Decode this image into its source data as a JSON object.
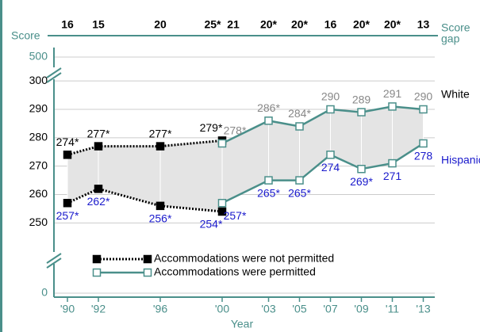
{
  "chart_data": {
    "type": "line",
    "ylabel": "Score",
    "y2label": [
      "Score",
      "gap"
    ],
    "xlabel": "Year",
    "xlim": [
      1988.5,
      2014.5
    ],
    "xticks": [
      {
        "value": 1990,
        "label": "'90"
      },
      {
        "value": 1992,
        "label": "'92"
      },
      {
        "value": 1996,
        "label": "'96"
      },
      {
        "value": 2000,
        "label": "'00"
      },
      {
        "value": 2003,
        "label": "'03"
      },
      {
        "value": 2005,
        "label": "'05"
      },
      {
        "value": 2007,
        "label": "'07"
      },
      {
        "value": 2009,
        "label": "'09"
      },
      {
        "value": 2011,
        "label": "'11"
      },
      {
        "value": 2013,
        "label": "'13"
      }
    ],
    "ylim": [
      242,
      302
    ],
    "yticks": [
      250,
      260,
      270,
      280,
      290,
      300
    ],
    "broken_yticks": [
      0,
      500
    ],
    "grid": true,
    "score_gap": {
      "x": [
        1990,
        1992,
        1996,
        2000,
        2000,
        2003,
        2005,
        2007,
        2009,
        2011,
        2013
      ],
      "labels": [
        "16",
        "15",
        "20",
        "25*",
        "21",
        "20*",
        "20*",
        "16",
        "20*",
        "20*",
        "13"
      ]
    },
    "groups": [
      "White",
      "Hispanic"
    ],
    "legend": [
      "Accommodations were not permitted",
      "Accommodations were permitted"
    ],
    "series": [
      {
        "group": 0,
        "legend": 0,
        "color": "#000000",
        "label_color": "#000000",
        "x": [
          1990,
          1992,
          1996,
          2000
        ],
        "values": [
          274,
          277,
          277,
          279
        ],
        "value_labels": [
          "274*",
          "277*",
          "277*",
          "279*"
        ]
      },
      {
        "group": 1,
        "legend": 0,
        "color": "#000000",
        "label_color": "#1a1acc",
        "x": [
          1990,
          1992,
          1996,
          2000
        ],
        "values": [
          257,
          262,
          256,
          254
        ],
        "value_labels": [
          "257*",
          "262*",
          "256*",
          "254*"
        ]
      },
      {
        "group": 0,
        "legend": 1,
        "color": "#4a8f8a",
        "label_color": "#888888",
        "x": [
          2000,
          2003,
          2005,
          2007,
          2009,
          2011,
          2013
        ],
        "values": [
          278,
          286,
          284,
          290,
          289,
          291,
          290
        ],
        "value_labels": [
          "278*",
          "286*",
          "284*",
          "290",
          "289",
          "291",
          "290"
        ]
      },
      {
        "group": 1,
        "legend": 1,
        "color": "#4a8f8a",
        "label_color": "#1a1acc",
        "x": [
          2000,
          2003,
          2005,
          2007,
          2009,
          2011,
          2013
        ],
        "values": [
          257,
          265,
          265,
          274,
          269,
          271,
          278
        ],
        "value_labels": [
          "257*",
          "265*",
          "265*",
          "274",
          "269*",
          "271",
          "278"
        ]
      }
    ]
  }
}
